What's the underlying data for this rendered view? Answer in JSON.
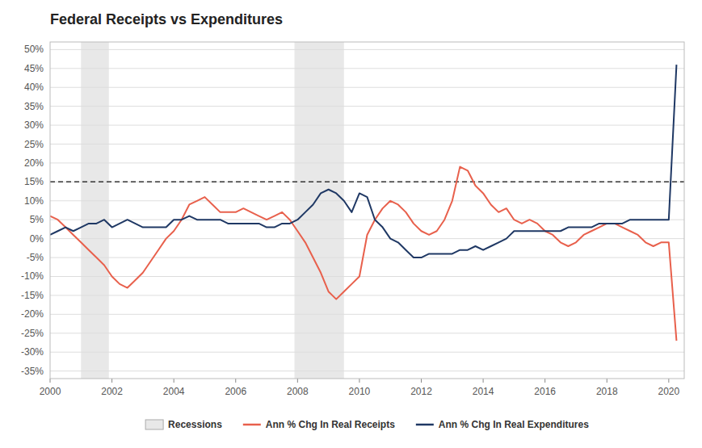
{
  "chart_data": {
    "type": "line",
    "title": "Federal Receipts vs Expenditures",
    "x": [
      2000.0,
      2000.25,
      2000.5,
      2000.75,
      2001.0,
      2001.25,
      2001.5,
      2001.75,
      2002.0,
      2002.25,
      2002.5,
      2002.75,
      2003.0,
      2003.25,
      2003.5,
      2003.75,
      2004.0,
      2004.25,
      2004.5,
      2004.75,
      2005.0,
      2005.25,
      2005.5,
      2005.75,
      2006.0,
      2006.25,
      2006.5,
      2006.75,
      2007.0,
      2007.25,
      2007.5,
      2007.75,
      2008.0,
      2008.25,
      2008.5,
      2008.75,
      2009.0,
      2009.25,
      2009.5,
      2009.75,
      2010.0,
      2010.25,
      2010.5,
      2010.75,
      2011.0,
      2011.25,
      2011.5,
      2011.75,
      2012.0,
      2012.25,
      2012.5,
      2012.75,
      2013.0,
      2013.25,
      2013.5,
      2013.75,
      2014.0,
      2014.25,
      2014.5,
      2014.75,
      2015.0,
      2015.25,
      2015.5,
      2015.75,
      2016.0,
      2016.25,
      2016.5,
      2016.75,
      2017.0,
      2017.25,
      2017.5,
      2017.75,
      2018.0,
      2018.25,
      2018.5,
      2018.75,
      2019.0,
      2019.25,
      2019.5,
      2019.75,
      2020.0,
      2020.25
    ],
    "series": [
      {
        "name": "Ann % Chg In Real Receipts",
        "color": "#E8604C",
        "values": [
          0.06,
          0.05,
          0.03,
          0.01,
          -0.01,
          -0.03,
          -0.05,
          -0.07,
          -0.1,
          -0.12,
          -0.13,
          -0.11,
          -0.09,
          -0.06,
          -0.03,
          0.0,
          0.02,
          0.05,
          0.09,
          0.1,
          0.11,
          0.09,
          0.07,
          0.07,
          0.07,
          0.08,
          0.07,
          0.06,
          0.05,
          0.06,
          0.07,
          0.05,
          0.02,
          -0.01,
          -0.05,
          -0.09,
          -0.14,
          -0.16,
          -0.14,
          -0.12,
          -0.1,
          0.01,
          0.05,
          0.08,
          0.1,
          0.09,
          0.07,
          0.04,
          0.02,
          0.01,
          0.02,
          0.05,
          0.1,
          0.19,
          0.18,
          0.14,
          0.12,
          0.09,
          0.07,
          0.08,
          0.05,
          0.04,
          0.05,
          0.04,
          0.02,
          0.01,
          -0.01,
          -0.02,
          -0.01,
          0.01,
          0.02,
          0.03,
          0.04,
          0.04,
          0.03,
          0.02,
          0.01,
          -0.01,
          -0.02,
          -0.01,
          -0.01,
          -0.27
        ]
      },
      {
        "name": "Ann % Chg In Real Expenditures",
        "color": "#1F3864",
        "values": [
          0.01,
          0.02,
          0.03,
          0.02,
          0.03,
          0.04,
          0.04,
          0.05,
          0.03,
          0.04,
          0.05,
          0.04,
          0.03,
          0.03,
          0.03,
          0.03,
          0.05,
          0.05,
          0.06,
          0.05,
          0.05,
          0.05,
          0.05,
          0.04,
          0.04,
          0.04,
          0.04,
          0.04,
          0.03,
          0.03,
          0.04,
          0.04,
          0.05,
          0.07,
          0.09,
          0.12,
          0.13,
          0.12,
          0.1,
          0.07,
          0.12,
          0.11,
          0.05,
          0.03,
          0.0,
          -0.01,
          -0.03,
          -0.05,
          -0.05,
          -0.04,
          -0.04,
          -0.04,
          -0.04,
          -0.03,
          -0.03,
          -0.02,
          -0.03,
          -0.02,
          -0.01,
          0.0,
          0.02,
          0.02,
          0.02,
          0.02,
          0.02,
          0.02,
          0.02,
          0.03,
          0.03,
          0.03,
          0.03,
          0.04,
          0.04,
          0.04,
          0.04,
          0.05,
          0.05,
          0.05,
          0.05,
          0.05,
          0.05,
          0.46
        ]
      }
    ],
    "recessions": {
      "name": "Recessions",
      "color": "#E8E8E8",
      "ranges": [
        [
          2001.0,
          2001.9
        ],
        [
          2007.9,
          2009.5
        ]
      ]
    },
    "reference_line": {
      "y": 0.15,
      "line_style": "dashed"
    },
    "xlim": [
      2000,
      2020.5
    ],
    "xticks": [
      2000,
      2002,
      2004,
      2006,
      2008,
      2010,
      2012,
      2014,
      2016,
      2018,
      2020
    ],
    "ylim": [
      -0.37,
      0.52
    ],
    "yticks": [
      {
        "value": -0.35,
        "label": "-35%"
      },
      {
        "value": -0.3,
        "label": "-30%"
      },
      {
        "value": -0.25,
        "label": "-25%"
      },
      {
        "value": -0.2,
        "label": "-20%"
      },
      {
        "value": -0.15,
        "label": "-15%"
      },
      {
        "value": -0.1,
        "label": "-10%"
      },
      {
        "value": -0.05,
        "label": "-5%"
      },
      {
        "value": 0.0,
        "label": "0%"
      },
      {
        "value": 0.05,
        "label": "5%"
      },
      {
        "value": 0.1,
        "label": "10%"
      },
      {
        "value": 0.15,
        "label": "15%"
      },
      {
        "value": 0.2,
        "label": "20%"
      },
      {
        "value": 0.25,
        "label": "25%"
      },
      {
        "value": 0.3,
        "label": "30%"
      },
      {
        "value": 0.35,
        "label": "35%"
      },
      {
        "value": 0.4,
        "label": "40%"
      },
      {
        "value": 0.45,
        "label": "45%"
      },
      {
        "value": 0.5,
        "label": "50%"
      }
    ],
    "grid": "y",
    "legend": "bottom"
  }
}
